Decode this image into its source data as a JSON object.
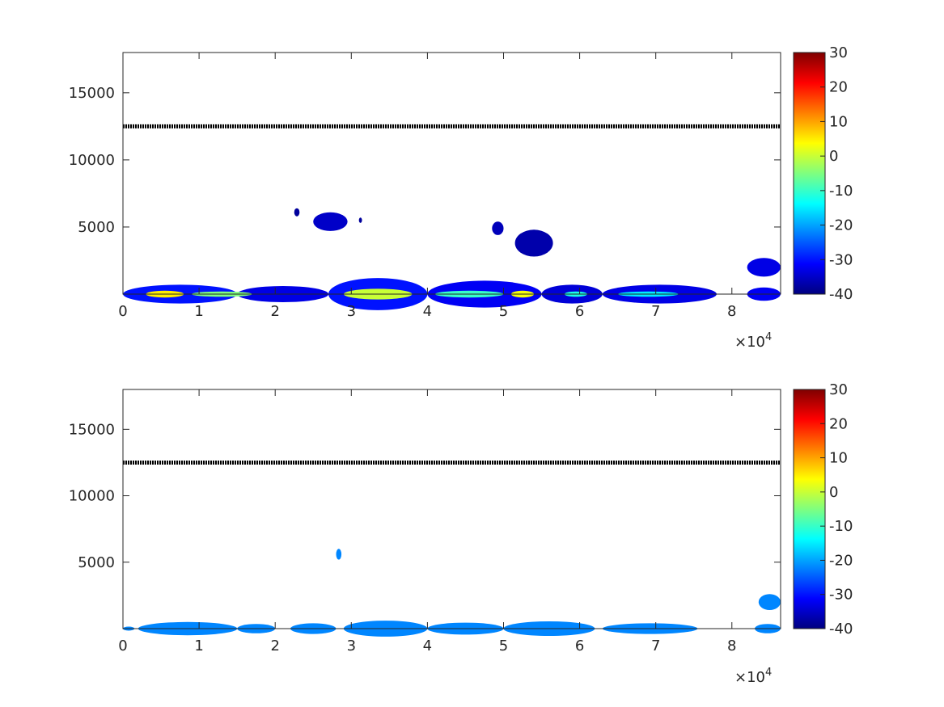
{
  "colormap": {
    "name": "jet",
    "stops": [
      "#00007f",
      "#0000ff",
      "#007fff",
      "#00ffff",
      "#7fff7f",
      "#ffff00",
      "#ff7f00",
      "#ff0000",
      "#7f0000"
    ]
  },
  "chart_data": [
    {
      "type": "heatmap",
      "title": "",
      "xlabel": "",
      "ylabel": "",
      "xlim": [
        0,
        86400
      ],
      "ylim": [
        0,
        18000
      ],
      "x_exponent_label": "×10",
      "x_exponent_power": "4",
      "x_ticks": [
        0,
        10000,
        20000,
        30000,
        40000,
        50000,
        60000,
        70000,
        80000
      ],
      "x_tick_labels": [
        "0",
        "1",
        "2",
        "3",
        "4",
        "5",
        "6",
        "7",
        "8"
      ],
      "y_ticks": [
        5000,
        10000,
        15000
      ],
      "y_tick_labels": [
        "5000",
        "10000",
        "15000"
      ],
      "colorbar": {
        "limits": [
          -40,
          30
        ],
        "ticks": [
          -40,
          -30,
          -20,
          -10,
          0,
          10,
          20,
          30
        ],
        "tick_labels": [
          "-40",
          "-30",
          "-20",
          "-10",
          "0",
          "10",
          "20",
          "30"
        ]
      },
      "reference_line": {
        "y": 12500,
        "color": "#000000"
      },
      "regions": [
        {
          "x": [
            0,
            15000
          ],
          "y": [
            0,
            700
          ],
          "v": -30
        },
        {
          "x": [
            15000,
            27000
          ],
          "y": [
            0,
            600
          ],
          "v": -33
        },
        {
          "x": [
            27000,
            40000
          ],
          "y": [
            0,
            1200
          ],
          "v": -30
        },
        {
          "x": [
            40000,
            55000
          ],
          "y": [
            0,
            1000
          ],
          "v": -32
        },
        {
          "x": [
            55000,
            63000
          ],
          "y": [
            0,
            700
          ],
          "v": -34
        },
        {
          "x": [
            63000,
            78000
          ],
          "y": [
            0,
            700
          ],
          "v": -33
        },
        {
          "x": [
            82000,
            86400
          ],
          "y": [
            0,
            500
          ],
          "v": -32
        },
        {
          "x": [
            3000,
            8000
          ],
          "y": [
            0,
            250
          ],
          "v": 5
        },
        {
          "x": [
            9000,
            17000
          ],
          "y": [
            0,
            200
          ],
          "v": -5
        },
        {
          "x": [
            29000,
            38000
          ],
          "y": [
            0,
            400
          ],
          "v": 0
        },
        {
          "x": [
            41000,
            50000
          ],
          "y": [
            0,
            250
          ],
          "v": -10
        },
        {
          "x": [
            51000,
            54000
          ],
          "y": [
            0,
            250
          ],
          "v": 3
        },
        {
          "x": [
            58000,
            61000
          ],
          "y": [
            0,
            200
          ],
          "v": -12
        },
        {
          "x": [
            65000,
            73000
          ],
          "y": [
            0,
            200
          ],
          "v": -15
        },
        {
          "x": [
            82000,
            86400
          ],
          "y": [
            2000,
            2700
          ],
          "v": -33
        },
        {
          "x": [
            25000,
            29500
          ],
          "y": [
            5400,
            6100
          ],
          "v": -35
        },
        {
          "x": [
            51500,
            56500
          ],
          "y": [
            3800,
            4800
          ],
          "v": -37
        },
        {
          "x": [
            48500,
            50000
          ],
          "y": [
            4900,
            5400
          ],
          "v": -36
        },
        {
          "x": [
            22500,
            23200
          ],
          "y": [
            6100,
            6400
          ],
          "v": -38
        },
        {
          "x": [
            31000,
            31400
          ],
          "y": [
            5500,
            5700
          ],
          "v": -38
        }
      ]
    },
    {
      "type": "heatmap",
      "title": "",
      "xlabel": "",
      "ylabel": "",
      "xlim": [
        0,
        86400
      ],
      "ylim": [
        0,
        18000
      ],
      "x_exponent_label": "×10",
      "x_exponent_power": "4",
      "x_ticks": [
        0,
        10000,
        20000,
        30000,
        40000,
        50000,
        60000,
        70000,
        80000
      ],
      "x_tick_labels": [
        "0",
        "1",
        "2",
        "3",
        "4",
        "5",
        "6",
        "7",
        "8"
      ],
      "y_ticks": [
        5000,
        10000,
        15000
      ],
      "y_tick_labels": [
        "5000",
        "10000",
        "15000"
      ],
      "colorbar": {
        "limits": [
          -40,
          30
        ],
        "ticks": [
          -40,
          -30,
          -20,
          -10,
          0,
          10,
          20,
          30
        ],
        "tick_labels": [
          "-40",
          "-30",
          "-20",
          "-10",
          "0",
          "10",
          "20",
          "30"
        ]
      },
      "reference_line": {
        "y": 12500,
        "color": "#000000"
      },
      "regions": [
        {
          "x": [
            0,
            1500
          ],
          "y": [
            0,
            150
          ],
          "v": -22
        },
        {
          "x": [
            2000,
            15000
          ],
          "y": [
            0,
            500
          ],
          "v": -22
        },
        {
          "x": [
            15000,
            20000
          ],
          "y": [
            0,
            350
          ],
          "v": -22
        },
        {
          "x": [
            22000,
            28000
          ],
          "y": [
            0,
            400
          ],
          "v": -22
        },
        {
          "x": [
            29000,
            40000
          ],
          "y": [
            0,
            600
          ],
          "v": -22
        },
        {
          "x": [
            40000,
            50000
          ],
          "y": [
            0,
            450
          ],
          "v": -22
        },
        {
          "x": [
            50000,
            62000
          ],
          "y": [
            0,
            550
          ],
          "v": -22
        },
        {
          "x": [
            63000,
            75500
          ],
          "y": [
            0,
            400
          ],
          "v": -22
        },
        {
          "x": [
            83000,
            86400
          ],
          "y": [
            0,
            350
          ],
          "v": -22
        },
        {
          "x": [
            83500,
            86400
          ],
          "y": [
            2000,
            2600
          ],
          "v": -22
        },
        {
          "x": [
            28000,
            28700
          ],
          "y": [
            5600,
            6000
          ],
          "v": -22
        }
      ]
    }
  ]
}
